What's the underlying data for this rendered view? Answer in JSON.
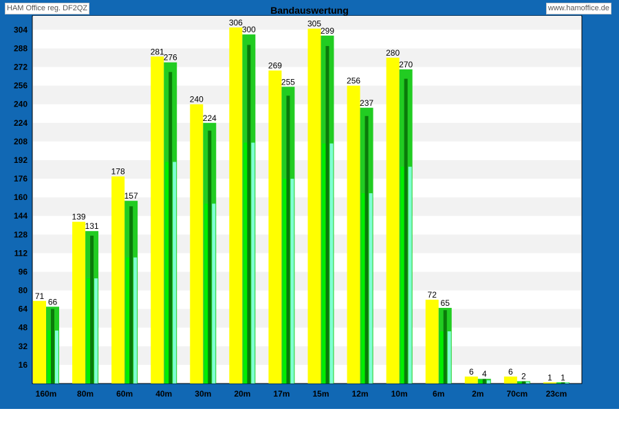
{
  "header": {
    "left_label": "HAM Office reg. DF2QZ",
    "right_label": "www.hamoffice.de"
  },
  "colors": {
    "frame": "#1168b4",
    "yellow": "#ffff00",
    "green": "#22cc22",
    "bright_green": "#00ee00",
    "dark_green": "#0a7a0a",
    "cyan": "#7fffd4",
    "stripe": "#f2f2f2"
  },
  "chart_data": {
    "type": "bar",
    "title": "Bandauswertung",
    "categories": [
      "160m",
      "80m",
      "60m",
      "40m",
      "30m",
      "20m",
      "17m",
      "15m",
      "12m",
      "10m",
      "6m",
      "2m",
      "70cm",
      "23cm"
    ],
    "yticks": [
      16,
      32,
      48,
      64,
      80,
      96,
      112,
      128,
      144,
      160,
      176,
      192,
      208,
      224,
      240,
      256,
      272,
      288,
      304
    ],
    "ylim": [
      0,
      316
    ],
    "grid": "alternating horizontal bands",
    "series": [
      {
        "values": [
          71,
          139,
          178,
          281,
          240,
          306,
          269,
          305,
          256,
          280,
          72,
          6,
          6,
          1
        ]
      },
      {
        "values": [
          66,
          131,
          157,
          276,
          224,
          300,
          255,
          299,
          237,
          270,
          65,
          4,
          2,
          1
        ]
      }
    ]
  }
}
